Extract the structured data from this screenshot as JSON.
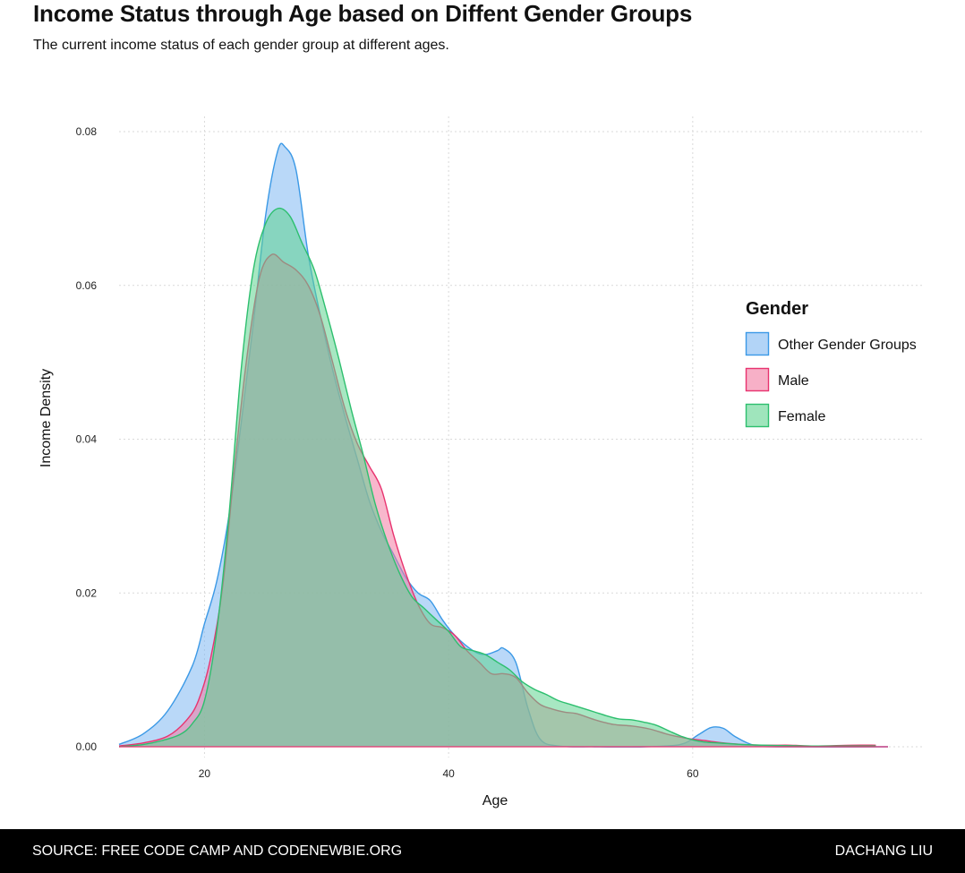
{
  "header": {
    "title": "Income Status through Age based on Diffent Gender Groups",
    "subtitle": "The current income status of each gender group at different ages."
  },
  "footer": {
    "source": "SOURCE: FREE CODE CAMP AND CODENEWBIE.ORG",
    "author": "DACHANG LIU"
  },
  "chart_data": {
    "type": "area",
    "xlabel": "Age",
    "ylabel": "Income Density",
    "xlim": [
      13,
      76
    ],
    "ylim": [
      0,
      0.08
    ],
    "xticks": [
      20,
      40,
      60
    ],
    "yticks": [
      0.0,
      0.02,
      0.04,
      0.06,
      0.08
    ],
    "ytick_labels": [
      "0.00",
      "0.02",
      "0.04",
      "0.06",
      "0.08"
    ],
    "grid": true,
    "legend": {
      "title": "Gender",
      "placement": "right"
    },
    "series": [
      {
        "name": "Other Gender Groups",
        "color": "#3B99E6",
        "fill": "#7FB8F2",
        "points": [
          [
            13,
            0.0003
          ],
          [
            15,
            0.0017
          ],
          [
            17,
            0.0047
          ],
          [
            19,
            0.0105
          ],
          [
            20,
            0.016
          ],
          [
            21,
            0.0215
          ],
          [
            22,
            0.03
          ],
          [
            23,
            0.042
          ],
          [
            24,
            0.055
          ],
          [
            25,
            0.069
          ],
          [
            26,
            0.0775
          ],
          [
            26.6,
            0.078
          ],
          [
            27.5,
            0.075
          ],
          [
            28.5,
            0.064
          ],
          [
            29.5,
            0.056
          ],
          [
            30.5,
            0.049
          ],
          [
            31.5,
            0.043
          ],
          [
            32.5,
            0.0375
          ],
          [
            33.5,
            0.032
          ],
          [
            34.5,
            0.028
          ],
          [
            35.5,
            0.025
          ],
          [
            36.5,
            0.022
          ],
          [
            37.5,
            0.02
          ],
          [
            38.5,
            0.019
          ],
          [
            39.5,
            0.0165
          ],
          [
            40.5,
            0.0145
          ],
          [
            42,
            0.0125
          ],
          [
            43,
            0.012
          ],
          [
            44,
            0.0125
          ],
          [
            44.5,
            0.0128
          ],
          [
            45.5,
            0.011
          ],
          [
            46.5,
            0.005
          ],
          [
            47.5,
            0.001
          ],
          [
            49,
            0.0001
          ],
          [
            52,
            0.0
          ],
          [
            56,
            0.0
          ],
          [
            59,
            0.0003
          ],
          [
            60.5,
            0.0016
          ],
          [
            61.5,
            0.0025
          ],
          [
            62.5,
            0.0024
          ],
          [
            63.5,
            0.0013
          ],
          [
            65,
            0.0002
          ],
          [
            67,
            0.0
          ],
          [
            76,
            0.0
          ]
        ]
      },
      {
        "name": "Male",
        "color": "#E8336F",
        "fill": "#F27BA2",
        "points": [
          [
            13,
            0.0001
          ],
          [
            15,
            0.0005
          ],
          [
            17,
            0.0014
          ],
          [
            18.5,
            0.0034
          ],
          [
            19.5,
            0.006
          ],
          [
            20.5,
            0.0115
          ],
          [
            21.5,
            0.021
          ],
          [
            22.5,
            0.037
          ],
          [
            23.5,
            0.051
          ],
          [
            24.5,
            0.061
          ],
          [
            25.5,
            0.064
          ],
          [
            26.5,
            0.063
          ],
          [
            27.5,
            0.062
          ],
          [
            28.5,
            0.06
          ],
          [
            29.5,
            0.056
          ],
          [
            30.5,
            0.05
          ],
          [
            31.5,
            0.044
          ],
          [
            32.5,
            0.0395
          ],
          [
            33.5,
            0.0365
          ],
          [
            34.5,
            0.0335
          ],
          [
            35.5,
            0.0275
          ],
          [
            36.5,
            0.0225
          ],
          [
            37.5,
            0.0185
          ],
          [
            38.5,
            0.016
          ],
          [
            39.5,
            0.0155
          ],
          [
            40.5,
            0.0145
          ],
          [
            41.5,
            0.0125
          ],
          [
            42.5,
            0.011
          ],
          [
            43.5,
            0.0095
          ],
          [
            44.5,
            0.0095
          ],
          [
            45.5,
            0.009
          ],
          [
            46.5,
            0.007
          ],
          [
            47.5,
            0.0055
          ],
          [
            48.5,
            0.0049
          ],
          [
            49.5,
            0.0045
          ],
          [
            50.5,
            0.0043
          ],
          [
            52,
            0.0035
          ],
          [
            53.5,
            0.0029
          ],
          [
            55,
            0.0027
          ],
          [
            56.5,
            0.0023
          ],
          [
            58,
            0.0016
          ],
          [
            59.5,
            0.0011
          ],
          [
            61,
            0.0008
          ],
          [
            62.5,
            0.0005
          ],
          [
            64,
            0.0003
          ],
          [
            66,
            0.0002
          ],
          [
            68,
            0.0002
          ],
          [
            70,
            0.0001
          ],
          [
            73,
            0.0002
          ],
          [
            75,
            0.0002
          ]
        ]
      },
      {
        "name": "Female",
        "color": "#2DBF6E",
        "fill": "#5FD38F",
        "points": [
          [
            13,
            0.0
          ],
          [
            15,
            0.0003
          ],
          [
            16.5,
            0.0008
          ],
          [
            18,
            0.0016
          ],
          [
            19,
            0.003
          ],
          [
            20,
            0.006
          ],
          [
            21,
            0.015
          ],
          [
            22,
            0.03
          ],
          [
            23,
            0.049
          ],
          [
            24,
            0.062
          ],
          [
            25,
            0.068
          ],
          [
            26,
            0.07
          ],
          [
            27,
            0.069
          ],
          [
            28,
            0.0655
          ],
          [
            29,
            0.062
          ],
          [
            30,
            0.0565
          ],
          [
            31,
            0.0505
          ],
          [
            32,
            0.044
          ],
          [
            33,
            0.038
          ],
          [
            34,
            0.0315
          ],
          [
            35,
            0.0265
          ],
          [
            36,
            0.0225
          ],
          [
            37,
            0.0195
          ],
          [
            38,
            0.018
          ],
          [
            39,
            0.0165
          ],
          [
            40,
            0.015
          ],
          [
            41,
            0.013
          ],
          [
            42,
            0.0125
          ],
          [
            43,
            0.012
          ],
          [
            44,
            0.011
          ],
          [
            45,
            0.01
          ],
          [
            46,
            0.0085
          ],
          [
            47,
            0.0075
          ],
          [
            48,
            0.0068
          ],
          [
            49,
            0.006
          ],
          [
            50,
            0.0055
          ],
          [
            51,
            0.005
          ],
          [
            52,
            0.0045
          ],
          [
            53,
            0.004
          ],
          [
            54,
            0.0036
          ],
          [
            55,
            0.0035
          ],
          [
            56,
            0.0032
          ],
          [
            57,
            0.0028
          ],
          [
            58,
            0.0021
          ],
          [
            59,
            0.0014
          ],
          [
            60,
            0.0009
          ],
          [
            61,
            0.0006
          ],
          [
            62,
            0.0005
          ],
          [
            63,
            0.0004
          ],
          [
            64,
            0.0003
          ],
          [
            66,
            0.0002
          ],
          [
            70,
            0.0001
          ],
          [
            75,
            0.0001
          ]
        ]
      }
    ]
  }
}
